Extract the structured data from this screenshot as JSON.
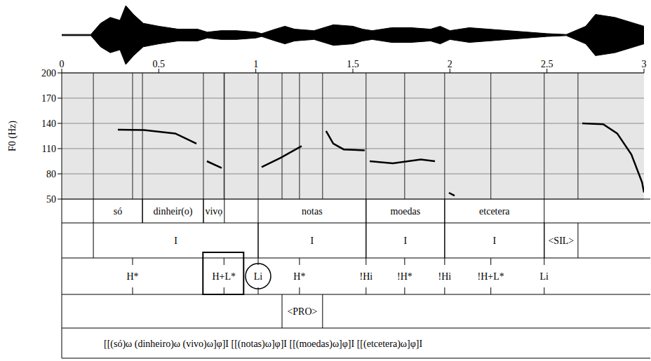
{
  "chart_data": {
    "type": "line",
    "y_label": "F0 (Hz)",
    "xlim": [
      0,
      3
    ],
    "xticks": [
      0,
      0.5,
      1,
      1.5,
      2,
      2.5,
      3
    ],
    "ylim": [
      50,
      200
    ],
    "yticks": [
      50,
      80,
      110,
      140,
      170,
      200
    ],
    "grid": true,
    "color": "#000000",
    "x": [
      0.289,
      0.423,
      0.585,
      0.694,
      0.72,
      0.748,
      0.824,
      0.93,
      1.03,
      1.128,
      1.236,
      1.3,
      1.362,
      1.399,
      1.453,
      1.561,
      1.575,
      1.587,
      1.706,
      1.85,
      1.923,
      1.96,
      1.995,
      2.024,
      2.3,
      2.682,
      2.79,
      2.862,
      2.935,
      2.99,
      3.0
    ],
    "values": [
      132.5,
      132,
      128,
      116,
      null,
      95,
      87,
      null,
      88,
      99,
      113,
      null,
      131,
      116,
      109,
      108,
      null,
      95,
      92.5,
      97,
      95,
      null,
      57.5,
      54,
      null,
      140,
      139,
      128,
      103,
      70,
      58
    ],
    "waveform": {
      "x": [
        0,
        0.15,
        0.2,
        0.25,
        0.3,
        0.33,
        0.37,
        0.42,
        0.5,
        0.6,
        0.7,
        0.75,
        0.82,
        0.9,
        1.0,
        1.03,
        1.1,
        1.15,
        1.2,
        1.3,
        1.4,
        1.5,
        1.55,
        1.6,
        1.7,
        1.8,
        1.9,
        1.95,
        2.0,
        2.1,
        2.2,
        2.3,
        2.4,
        2.5,
        2.6,
        2.7,
        2.75,
        2.85,
        2.95,
        3.0
      ],
      "amplitude": [
        0.02,
        0.02,
        0.4,
        0.6,
        0.5,
        1.0,
        0.7,
        0.4,
        0.3,
        0.2,
        0.2,
        0.1,
        0.15,
        0.15,
        0.1,
        0.05,
        0.2,
        0.3,
        0.2,
        0.15,
        0.35,
        0.3,
        0.2,
        0.15,
        0.25,
        0.25,
        0.2,
        0.3,
        0.15,
        0.25,
        0.2,
        0.15,
        0.1,
        0.05,
        0.02,
        0.3,
        0.7,
        0.6,
        0.4,
        0.3
      ]
    }
  },
  "tiers": {
    "words": [
      {
        "start": 0.163,
        "end": 0.416,
        "label": "só"
      },
      {
        "start": 0.416,
        "end": 0.73,
        "label": "dinheir(o)"
      },
      {
        "start": 0.73,
        "end": 0.838,
        "label": "vivọ"
      },
      {
        "start": 1.012,
        "end": 1.568,
        "label": "notas"
      },
      {
        "start": 1.568,
        "end": 1.973,
        "label": "moedas"
      },
      {
        "start": 1.973,
        "end": 2.486,
        "label": "etcetera"
      }
    ],
    "phrases": [
      {
        "start": 0.163,
        "end": 1.012,
        "label": "I"
      },
      {
        "start": 1.012,
        "end": 1.568,
        "label": "I"
      },
      {
        "start": 1.568,
        "end": 1.973,
        "label": "I"
      },
      {
        "start": 1.973,
        "end": 2.486,
        "label": "I"
      },
      {
        "start": 2.486,
        "end": 2.66,
        "label": "<SIL>"
      }
    ],
    "tones": [
      {
        "time": 0.365,
        "label": "H*"
      },
      {
        "time": 0.836,
        "label": "H+L*",
        "mark": "box"
      },
      {
        "time": 1.012,
        "label": "Li",
        "mark": "circle"
      },
      {
        "time": 1.225,
        "label": "H*"
      },
      {
        "time": 1.568,
        "label": "!Hi"
      },
      {
        "time": 1.767,
        "label": "!H*"
      },
      {
        "time": 1.973,
        "label": "!Hi"
      },
      {
        "time": 2.211,
        "label": "!H+L*"
      },
      {
        "time": 2.486,
        "label": "Li"
      }
    ],
    "prominence": [
      {
        "start": 1.135,
        "end": 1.344,
        "label": "<PRO>"
      }
    ],
    "prosodic_structure": "[[(só)ω (dinheiro)ω (vivo)ω]φ]I [[(notas)ω]φ]I [[(moedas)ω]φ]I [[(etcetera)ω]φ]I"
  }
}
